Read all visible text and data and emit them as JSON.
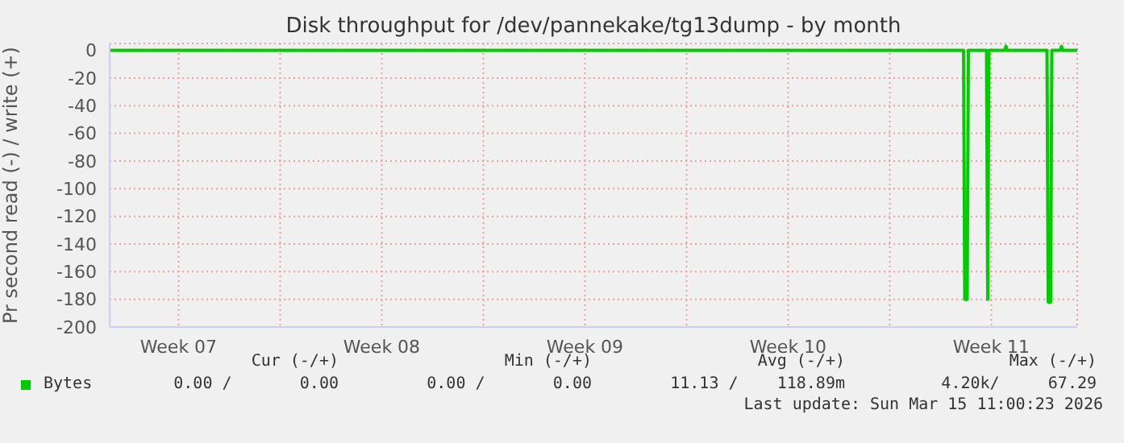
{
  "chart_data": {
    "type": "line",
    "title": "Disk throughput for /dev/pannekake/tg13dump - by month",
    "ylabel": "Pr second read (-) / write (+)",
    "x": [
      "2026-02-10T03:00",
      "2026-03-11T13:00",
      "2026-03-11T14:00",
      "2026-03-11T16:00",
      "2026-03-11T17:00",
      "2026-03-12T08:00",
      "2026-03-12T09:00",
      "2026-03-12T10:00",
      "2026-03-12T23:00",
      "2026-03-13T00:00",
      "2026-03-13T01:00",
      "2026-03-14T10:00",
      "2026-03-14T11:00",
      "2026-03-14T13:00",
      "2026-03-14T14:00",
      "2026-03-14T21:00",
      "2026-03-14T22:00",
      "2026-03-14T23:00",
      "2026-03-15T11:00"
    ],
    "series": [
      {
        "name": "Bytes",
        "color": "#00cc00",
        "values": [
          0,
          0,
          -180,
          -180,
          0,
          0,
          -180,
          0,
          0,
          3,
          0,
          0,
          -182,
          -182,
          0,
          0,
          3,
          0,
          0
        ]
      }
    ],
    "xlim": [
      "2026-02-10T03:00",
      "2026-03-15T11:00"
    ],
    "xticks": [
      {
        "value": "2026-02-12T12:00",
        "label": "Week 07"
      },
      {
        "value": "2026-02-16T00:00",
        "label": null
      },
      {
        "value": "2026-02-19T12:00",
        "label": "Week 08"
      },
      {
        "value": "2026-02-23T00:00",
        "label": null
      },
      {
        "value": "2026-02-26T12:00",
        "label": "Week 09"
      },
      {
        "value": "2026-03-02T00:00",
        "label": null
      },
      {
        "value": "2026-03-05T12:00",
        "label": "Week 10"
      },
      {
        "value": "2026-03-09T00:00",
        "label": null
      },
      {
        "value": "2026-03-12T12:00",
        "label": "Week 11"
      }
    ],
    "ylim": [
      -200,
      5
    ],
    "yticks": [
      -200,
      -180,
      -160,
      -140,
      -120,
      -100,
      -80,
      -60,
      -40,
      -20,
      0
    ],
    "grid": true,
    "legend": "bottom left",
    "marker": "none",
    "line_style": "solid",
    "annotations": [
      "Cur (-/+)",
      "Min (-/+)",
      "Avg (-/+)",
      "Max (-/+)",
      "0.00 /       0.00",
      "0.00 /       0.00",
      "11.13 /    118.89m",
      "4.20k/     67.29",
      "Last update: Sun Mar 15 11:00:23 2026"
    ]
  }
}
